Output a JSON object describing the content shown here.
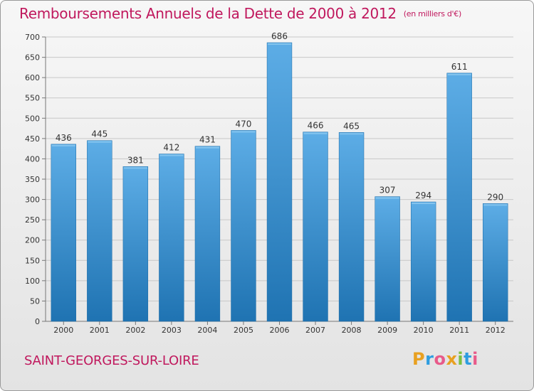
{
  "header": {
    "title": "Remboursements Annuels de la Dette de 2000 à 2012",
    "unit": "(en milliers d'€)"
  },
  "footer": {
    "city": "SAINT-GEORGES-SUR-LOIRE",
    "logo_text": "Proxiti"
  },
  "colors": {
    "accent": "#c0185d",
    "bar_top": "#5dade6",
    "bar_bottom": "#1f73b2"
  },
  "chart_data": {
    "type": "bar",
    "title": "Remboursements Annuels de la Dette de 2000 à 2012",
    "xlabel": "",
    "ylabel": "",
    "categories": [
      "2000",
      "2001",
      "2002",
      "2003",
      "2004",
      "2005",
      "2006",
      "2007",
      "2008",
      "2009",
      "2010",
      "2011",
      "2012"
    ],
    "values": [
      436,
      445,
      381,
      412,
      431,
      470,
      686,
      466,
      465,
      307,
      294,
      611,
      290
    ],
    "ylim": [
      0,
      700
    ],
    "yticks": [
      0,
      50,
      100,
      150,
      200,
      250,
      300,
      350,
      400,
      450,
      500,
      550,
      600,
      650,
      700
    ],
    "grid": true,
    "data_labels": true
  }
}
